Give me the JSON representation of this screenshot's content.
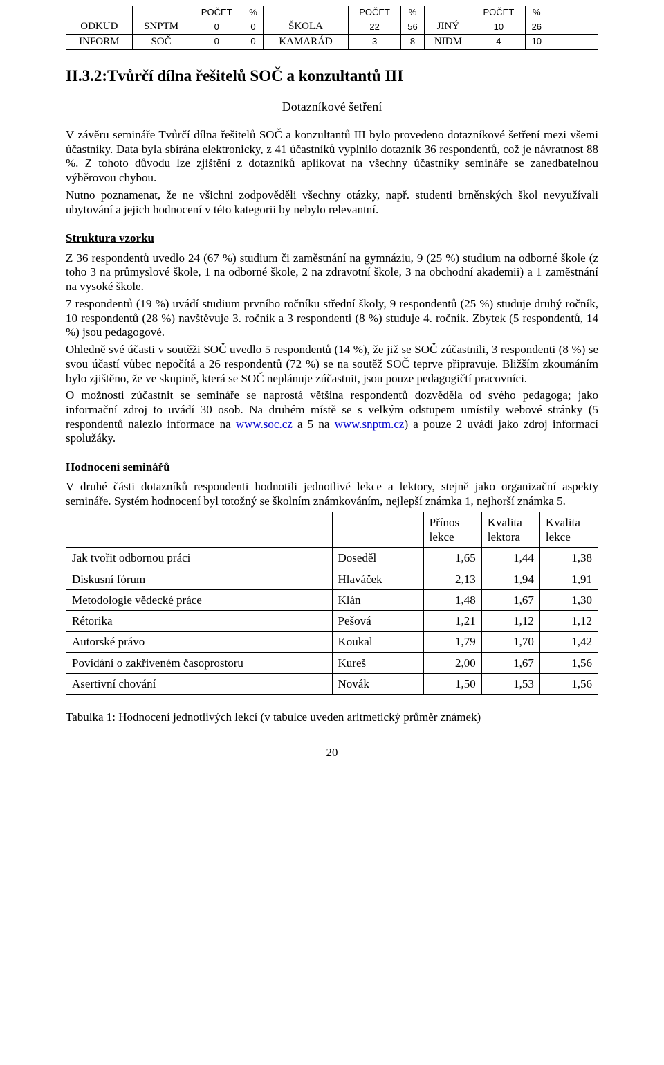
{
  "table1": {
    "head": {
      "pocet": "POČET",
      "pct": "%"
    },
    "rows": [
      {
        "l1": "ODKUD",
        "l2": "SNPTM",
        "v1": "0",
        "p1": "0",
        "l3": "ŠKOLA",
        "v2": "22",
        "p2": "56",
        "l4": "JINÝ",
        "v3": "10",
        "p3": "26"
      },
      {
        "l1": "INFORM",
        "l2": "SOČ",
        "v1": "0",
        "p1": "0",
        "l3": "KAMARÁD",
        "v2": "3",
        "p2": "8",
        "l4": "NIDM",
        "v3": "4",
        "p3": "10"
      }
    ]
  },
  "title": "II.3.2:Tvůrčí dílna řešitelů SOČ a konzultantů III",
  "subtitle": "Dotazníkové šetření",
  "para1a": "V závěru semináře Tvůrčí dílna řešitelů SOČ a konzultantů III bylo provedeno dotazníkové šetření mezi všemi účastníky. Data byla sbírána elektronicky, z 41 účastníků vyplnilo dotazník 36 respondentů, což je návratnost 88 %. Z tohoto důvodu lze zjištění z dotazníků aplikovat na všechny účastníky semináře se zanedbatelnou výběrovou chybou.",
  "para1b": "Nutno poznamenat, že ne všichni zodpověděli všechny otázky, např. studenti brněnských škol nevyužívali ubytování a jejich hodnocení v této kategorii by nebylo relevantní.",
  "sect1": "Struktura vzorku",
  "para2a": "Z 36 respondentů uvedlo 24 (67 %) studium či zaměstnání na gymnáziu, 9 (25 %) studium na odborné škole (z toho 3 na průmyslové škole, 1 na odborné škole, 2 na zdravotní škole, 3 na obchodní akademii) a 1 zaměstnání na vysoké škole.",
  "para2b": "7 respondentů (19 %) uvádí studium prvního ročníku střední školy, 9 respondentů (25 %) studuje druhý ročník, 10 respondentů (28 %) navštěvuje 3. ročník a 3 respondenti (8 %) studuje 4. ročník. Zbytek (5 respondentů, 14 %) jsou pedagogové.",
  "para2c": "Ohledně své účasti v soutěži SOČ uvedlo 5 respondentů (14 %), že již se SOČ zúčastnili, 3 respondenti (8 %) se svou účastí vůbec nepočítá a 26 respondentů (72 %) se na soutěž SOČ teprve připravuje. Bližším zkoumáním bylo zjištěno, že ve skupině, která se SOČ neplánuje zúčastnit, jsou pouze pedagogičtí pracovníci.",
  "para2d_a": "O možnosti zúčastnit se semináře se naprostá většina respondentů dozvěděla od svého pedagoga; jako informační zdroj to uvádí 30 osob. Na druhém místě se s velkým odstupem umístily webové stránky (5 respondentů nalezlo informace na ",
  "link1": "www.soc.cz",
  "para2d_b": " a 5 na ",
  "link2": "www.snptm.cz",
  "para2d_c": ") a pouze 2 uvádí jako zdroj informací spolužáky.",
  "sect2": "Hodnocení seminářů",
  "para3": "V druhé části dotazníků respondenti hodnotili jednotlivé lekce a lektory, stejně jako organizační aspekty semináře. Systém hodnocení byl totožný se školním známkováním, nejlepší známka 1, nejhorší známka 5.",
  "table2": {
    "headers": {
      "c1": "",
      "c2": "",
      "c3": "Přínos lekce",
      "c4": "Kvalita lektora",
      "c5": "Kvalita lekce"
    },
    "rows": [
      {
        "lec": "Jak tvořit odbornou práci",
        "lect": "Doseděl",
        "v1": "1,65",
        "v2": "1,44",
        "v3": "1,38"
      },
      {
        "lec": "Diskusní fórum",
        "lect": "Hlaváček",
        "v1": "2,13",
        "v2": "1,94",
        "v3": "1,91"
      },
      {
        "lec": "Metodologie vědecké práce",
        "lect": "Klán",
        "v1": "1,48",
        "v2": "1,67",
        "v3": "1,30"
      },
      {
        "lec": "Rétorika",
        "lect": "Pešová",
        "v1": "1,21",
        "v2": "1,12",
        "v3": "1,12"
      },
      {
        "lec": "Autorské právo",
        "lect": "Koukal",
        "v1": "1,79",
        "v2": "1,70",
        "v3": "1,42"
      },
      {
        "lec": "Povídání o zakřiveném časoprostoru",
        "lect": "Kureš",
        "v1": "2,00",
        "v2": "1,67",
        "v3": "1,56"
      },
      {
        "lec": "Asertivní chování",
        "lect": "Novák",
        "v1": "1,50",
        "v2": "1,53",
        "v3": "1,56"
      }
    ]
  },
  "caption": "Tabulka 1: Hodnocení jednotlivých lekcí (v tabulce uveden aritmetický průměr známek)",
  "pagenum": "20"
}
